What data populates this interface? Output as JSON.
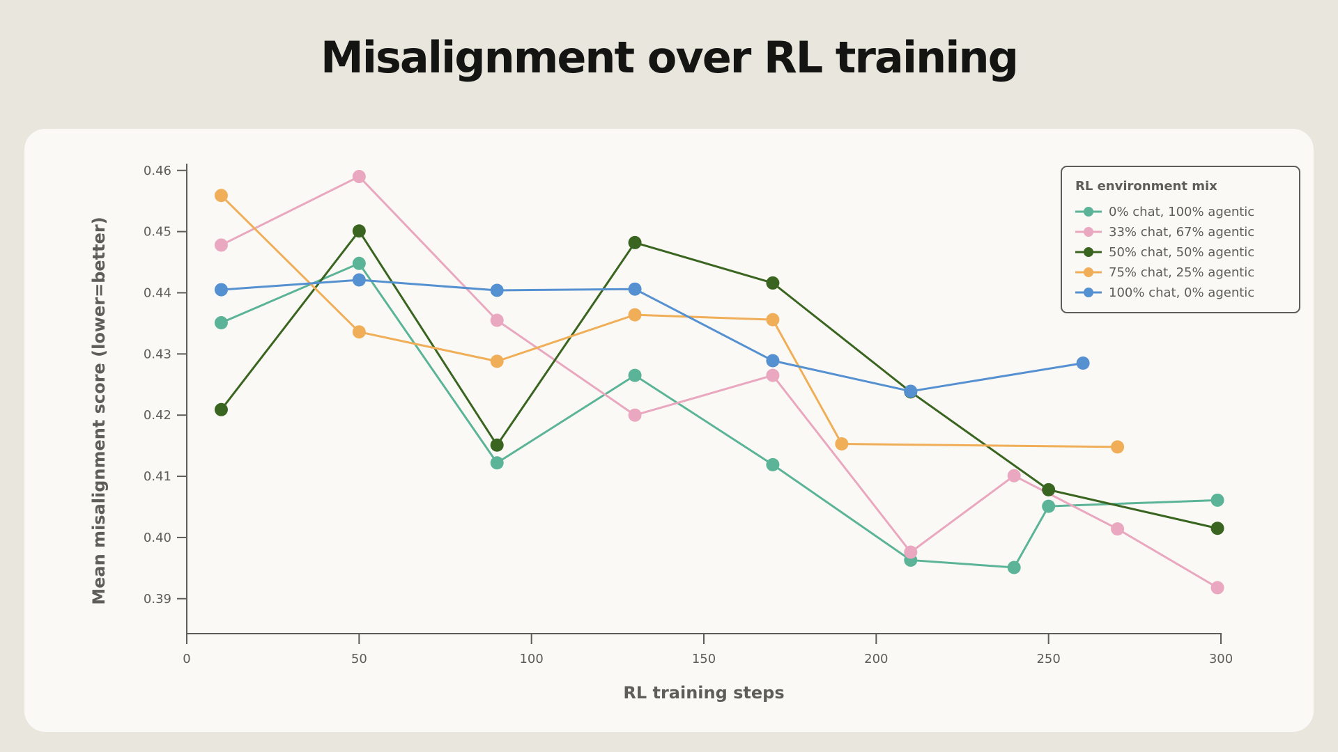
{
  "title": "Misalignment over RL training",
  "chart_data": {
    "type": "line",
    "title": "Misalignment over RL training",
    "xlabel": "RL training steps",
    "ylabel": "Mean misalignment score (lower=better)",
    "xlim": [
      0,
      300
    ],
    "ylim": [
      0.3877,
      0.4602
    ],
    "xticks": [
      0,
      50,
      100,
      150,
      200,
      250,
      300
    ],
    "yticks": [
      0.39,
      0.4,
      0.41,
      0.42,
      0.43,
      0.44,
      0.45,
      0.46
    ],
    "ytick_labels": [
      "0.39",
      "0.40",
      "0.41",
      "0.42",
      "0.43",
      "0.44",
      "0.45",
      "0.46"
    ],
    "grid": false,
    "legend": {
      "title": "RL environment mix",
      "placement": "top-right"
    },
    "series": [
      {
        "name": "0% chat, 100% agentic",
        "color": "#5bb497",
        "x": [
          10,
          50,
          90,
          130,
          170,
          210,
          240,
          250,
          299
        ],
        "y": [
          0.4351,
          0.4448,
          0.4122,
          0.4265,
          0.4119,
          0.3963,
          0.3951,
          0.4051,
          0.4061
        ]
      },
      {
        "name": "33% chat, 67% agentic",
        "color": "#e9a8c0",
        "x": [
          10,
          50,
          90,
          130,
          170,
          210,
          240,
          270,
          299
        ],
        "y": [
          0.4478,
          0.459,
          0.4355,
          0.42,
          0.4265,
          0.3976,
          0.4101,
          0.4014,
          0.3918
        ]
      },
      {
        "name": "50% chat, 50% agentic",
        "color": "#3a6520",
        "x": [
          10,
          50,
          90,
          130,
          170,
          210,
          250,
          299
        ],
        "y": [
          0.4209,
          0.4501,
          0.4151,
          0.4482,
          0.4416,
          0.4238,
          0.4078,
          0.4015
        ]
      },
      {
        "name": "75% chat, 25% agentic",
        "color": "#efae57",
        "x": [
          10,
          50,
          90,
          130,
          170,
          190,
          270
        ],
        "y": [
          0.4559,
          0.4336,
          0.4288,
          0.4364,
          0.4356,
          0.4153,
          0.4148
        ]
      },
      {
        "name": "100% chat, 0% agentic",
        "color": "#5590d1",
        "x": [
          10,
          50,
          90,
          130,
          170,
          210,
          260
        ],
        "y": [
          0.4405,
          0.4421,
          0.4404,
          0.4406,
          0.4289,
          0.4239,
          0.4285
        ]
      }
    ]
  }
}
